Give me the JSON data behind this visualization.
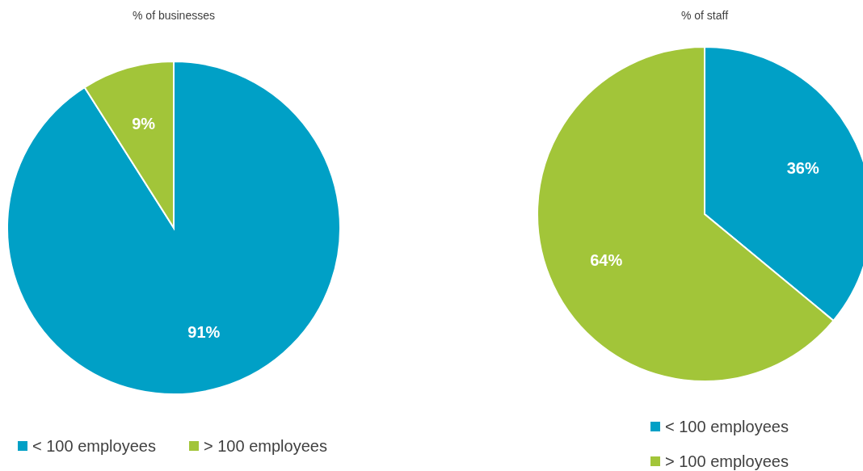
{
  "chart_data": [
    {
      "type": "pie",
      "title": "% of businesses",
      "categories": [
        "< 100 employees",
        "> 100 employees"
      ],
      "values": [
        91,
        9
      ],
      "value_labels": [
        "91%",
        "9%"
      ],
      "colors": [
        "#00a0c6",
        "#a2c539"
      ],
      "legend": "bottom"
    },
    {
      "type": "pie",
      "title": "% of staff",
      "categories": [
        "< 100 employees",
        "> 100 employees"
      ],
      "values": [
        36,
        64
      ],
      "value_labels": [
        "36%",
        "64%"
      ],
      "colors": [
        "#00a0c6",
        "#a2c539"
      ],
      "legend": "bottom"
    }
  ]
}
